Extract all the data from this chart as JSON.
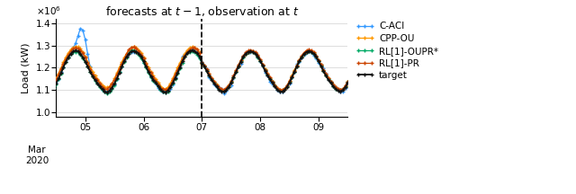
{
  "title": "forecasts at $t-1$, observation at $t$",
  "ylabel": "Load (kW)",
  "ylim": [
    980000.0,
    1420000.0
  ],
  "colors": {
    "C-ACI": "#3399FF",
    "CPP-OU": "#FF9900",
    "RL[1]-OUPR*": "#00AA66",
    "RL[1]-PR": "#CC4400",
    "target": "#111111"
  },
  "background_color": "#ffffff",
  "legend_labels": [
    "C-ACI",
    "CPP-OU",
    "RL[1]-OUPR*",
    "RL[1]-PR",
    "target"
  ]
}
